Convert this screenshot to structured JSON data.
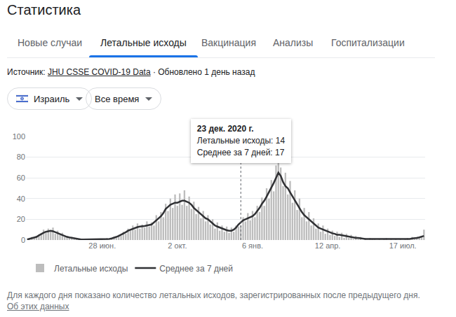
{
  "page": {
    "title": "Статистика",
    "tabs": [
      "Новые случаи",
      "Летальные исходы",
      "Вакцинация",
      "Анализы",
      "Госпитализации"
    ],
    "active_tab": "Летальные исходы",
    "source_label": "Источник:",
    "source_link": "JHU CSSE COVID-19 Data",
    "updated": "· Обновлено 1 день назад",
    "filters": [
      "Израиль",
      "Все время"
    ],
    "footnote": "Для каждого дня показано количество летальных исходов, зарегистрированных после предыдущего дня.",
    "footnote_link": "Об этих данных"
  },
  "chart_data": {
    "type": "bar",
    "categories": [
      null,
      null,
      null,
      null,
      null,
      null,
      null,
      null,
      null,
      null,
      null,
      null,
      null,
      null,
      null,
      null,
      null,
      null,
      null,
      null,
      null,
      null,
      null,
      null,
      null,
      null,
      null,
      null,
      null,
      null,
      null,
      null,
      "28 июн.",
      null,
      null,
      null,
      null,
      null,
      null,
      null,
      null,
      null,
      null,
      null,
      null,
      null,
      null,
      null,
      null,
      null,
      null,
      null,
      null,
      null,
      null,
      null,
      null,
      null,
      null,
      null,
      null,
      null,
      null,
      null,
      "2 окт.",
      null,
      null,
      null,
      null,
      null,
      null,
      null,
      null,
      null,
      null,
      null,
      null,
      null,
      null,
      null,
      null,
      null,
      null,
      null,
      null,
      null,
      null,
      null,
      null,
      null,
      null,
      null,
      null,
      null,
      null,
      null,
      "6 янв.",
      null,
      null,
      null,
      null,
      null,
      null,
      null,
      null,
      null,
      null,
      null,
      null,
      null,
      null,
      null,
      null,
      null,
      null,
      null,
      null,
      null,
      null,
      null,
      null,
      null,
      null,
      null,
      null,
      null,
      null,
      null,
      "12 апр.",
      null,
      null,
      null,
      null,
      null,
      null,
      null,
      null,
      null,
      null,
      null,
      null,
      null,
      null,
      null,
      null,
      null,
      null,
      null,
      null,
      null,
      null,
      null,
      null,
      null,
      null,
      null,
      null,
      null,
      null,
      null,
      "17 июл.",
      null,
      null,
      null,
      null,
      null,
      null,
      null,
      null,
      null
    ],
    "series": [
      {
        "name": "Летальные исходы",
        "type": "bar",
        "color": "#bdbdbd",
        "values": [
          0,
          1,
          3,
          2,
          4,
          5,
          6,
          10,
          7,
          11,
          8,
          12,
          6,
          9,
          5,
          7,
          3,
          4,
          2,
          3,
          1,
          2,
          0,
          1,
          0,
          1,
          0,
          1,
          0,
          1,
          0,
          1,
          0,
          1,
          2,
          0,
          2,
          3,
          2,
          5,
          4,
          8,
          6,
          11,
          9,
          14,
          10,
          16,
          11,
          15,
          12,
          18,
          13,
          17,
          14,
          24,
          18,
          27,
          22,
          35,
          28,
          40,
          31,
          44,
          33,
          45,
          34,
          48,
          33,
          42,
          30,
          37,
          25,
          32,
          21,
          28,
          18,
          24,
          15,
          20,
          11,
          17,
          9,
          14,
          8,
          13,
          7,
          12,
          8,
          14,
          13,
          14,
          22,
          18,
          26,
          19,
          28,
          22,
          33,
          27,
          41,
          33,
          50,
          40,
          58,
          47,
          72,
          88,
          70,
          52,
          65,
          44,
          57,
          36,
          48,
          29,
          40,
          22,
          31,
          18,
          27,
          14,
          21,
          11,
          16,
          8,
          14,
          6,
          11,
          5,
          9,
          4,
          8,
          3,
          7,
          2,
          6,
          2,
          5,
          1,
          4,
          1,
          3,
          0,
          2,
          0,
          2,
          1,
          1,
          0,
          1,
          0,
          1,
          2,
          0,
          1,
          0,
          1,
          0,
          1,
          0,
          1,
          2,
          0,
          3,
          1,
          3,
          2,
          4,
          10
        ]
      },
      {
        "name": "Среднее за 7 дней",
        "type": "line",
        "color": "#303134",
        "values": [
          0.5,
          1,
          2,
          2.5,
          3,
          4.5,
          6,
          7,
          8,
          8.5,
          9,
          8.5,
          7.5,
          7,
          6,
          5,
          4,
          3,
          2.5,
          2,
          1.5,
          1,
          1,
          0.5,
          0.5,
          0.5,
          0.5,
          0.5,
          0.5,
          0.5,
          0.5,
          0.5,
          0.5,
          1,
          1,
          1,
          1.5,
          2,
          3,
          4,
          5,
          6,
          7.5,
          9,
          10,
          11,
          12,
          12.5,
          13,
          13,
          13.5,
          14,
          14.5,
          15,
          17,
          19,
          21,
          23,
          26,
          30,
          32,
          34,
          35,
          36,
          36,
          37,
          38,
          38,
          37,
          36,
          34,
          31,
          29,
          27,
          25,
          23,
          21,
          20,
          18,
          16,
          14,
          13,
          12,
          11,
          10,
          9.5,
          9,
          9,
          10,
          12,
          15,
          17,
          19,
          20,
          21,
          22,
          23,
          25,
          28,
          31,
          35,
          38,
          42,
          46,
          50,
          55,
          60,
          65,
          62,
          56,
          52,
          50,
          46,
          42,
          38,
          34,
          30,
          27,
          24,
          22,
          20,
          18,
          16,
          14,
          12,
          11,
          10,
          9,
          8,
          7,
          6.5,
          6,
          5,
          5,
          4.5,
          4,
          3.5,
          3,
          3,
          2.5,
          2,
          2,
          1.5,
          1.5,
          1,
          1,
          1,
          1,
          1,
          1,
          0.5,
          0.5,
          0.5,
          1,
          0.5,
          0.5,
          0.5,
          0.5,
          0.5,
          0.5,
          0.5,
          1,
          1,
          1,
          1.5,
          1.5,
          2,
          2.5,
          3,
          4
        ]
      }
    ],
    "ylim": [
      0,
      100
    ],
    "yticks": [
      0,
      20,
      40,
      60,
      80,
      100
    ],
    "grid": true,
    "legend": "bottom left",
    "tooltip": {
      "date": "23 дек. 2020 г.",
      "lines": [
        "Летальные исходы: 14",
        "Среднее за 7 дней: 17"
      ]
    }
  }
}
